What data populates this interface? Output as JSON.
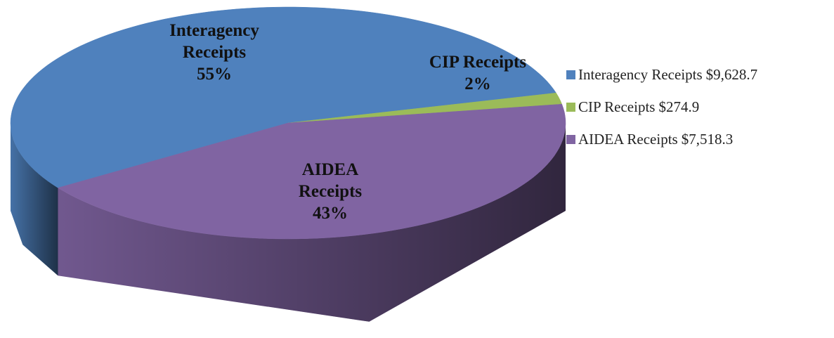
{
  "chart_data": {
    "type": "pie",
    "categories": [
      "Interagency Receipts",
      "CIP Receipts",
      "AIDEA Receipts"
    ],
    "values": [
      9628.7,
      274.9,
      7518.3
    ],
    "value_labels": [
      "$9,628.7",
      "$274.9",
      "$7,518.3"
    ],
    "percent_labels": [
      "55%",
      "2%",
      "43%"
    ],
    "colors": [
      "#4f81bd",
      "#9bbb59",
      "#8064a2"
    ]
  }
}
